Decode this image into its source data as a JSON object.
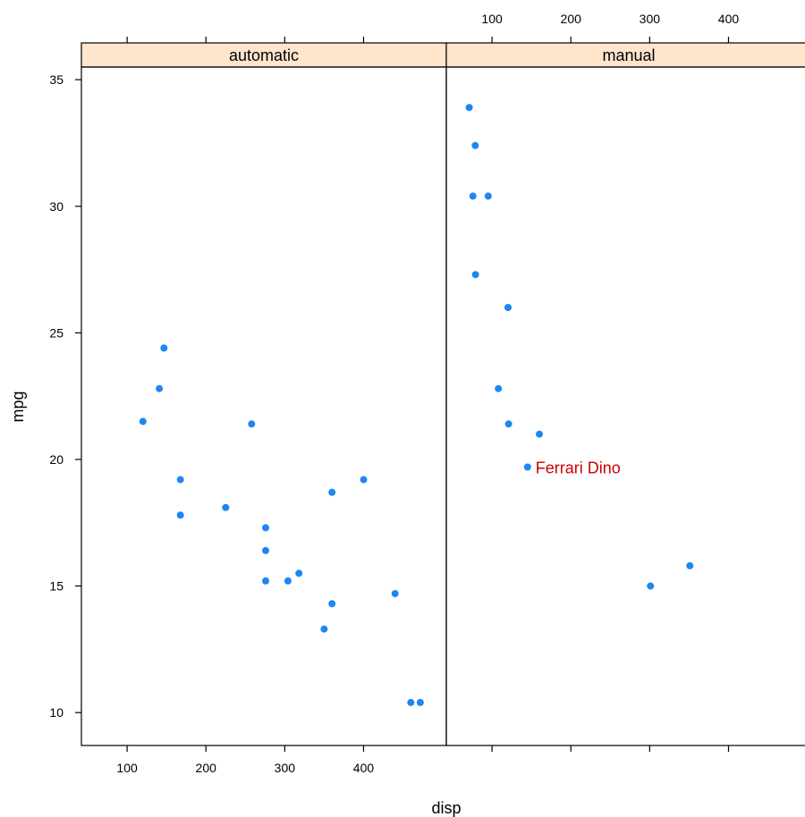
{
  "chart_data": {
    "type": "scatter",
    "xlabel": "disp",
    "ylabel": "mpg",
    "xlim": [
      42,
      505
    ],
    "ylim": [
      8.7,
      35.5
    ],
    "x_ticks": [
      100,
      200,
      300,
      400
    ],
    "y_ticks": [
      10,
      15,
      20,
      25,
      30,
      35
    ],
    "point_color": "#1f86f0",
    "strip_color": "#ffe5cc",
    "annotation_color": "#cc0000",
    "panels": [
      {
        "name": "automatic",
        "points": [
          {
            "x": 120.1,
            "y": 21.5
          },
          {
            "x": 146.7,
            "y": 24.4
          },
          {
            "x": 140.8,
            "y": 22.8
          },
          {
            "x": 167.6,
            "y": 19.2
          },
          {
            "x": 167.6,
            "y": 17.8
          },
          {
            "x": 225,
            "y": 18.1
          },
          {
            "x": 258,
            "y": 21.4
          },
          {
            "x": 275.8,
            "y": 17.3
          },
          {
            "x": 275.8,
            "y": 16.4
          },
          {
            "x": 275.8,
            "y": 15.2
          },
          {
            "x": 304,
            "y": 15.2
          },
          {
            "x": 318,
            "y": 15.5
          },
          {
            "x": 360,
            "y": 18.7
          },
          {
            "x": 360,
            "y": 14.3
          },
          {
            "x": 350,
            "y": 13.3
          },
          {
            "x": 400,
            "y": 19.2
          },
          {
            "x": 440,
            "y": 14.7
          },
          {
            "x": 460,
            "y": 10.4
          },
          {
            "x": 472,
            "y": 10.4
          }
        ]
      },
      {
        "name": "manual",
        "points": [
          {
            "x": 71.1,
            "y": 33.9
          },
          {
            "x": 78.7,
            "y": 32.4
          },
          {
            "x": 75.7,
            "y": 30.4
          },
          {
            "x": 95.1,
            "y": 30.4
          },
          {
            "x": 79,
            "y": 27.3
          },
          {
            "x": 120.3,
            "y": 26.0
          },
          {
            "x": 108,
            "y": 22.8
          },
          {
            "x": 121,
            "y": 21.4
          },
          {
            "x": 160,
            "y": 21.0
          },
          {
            "x": 145,
            "y": 19.7,
            "label": "Ferrari Dino"
          },
          {
            "x": 301,
            "y": 15.0
          },
          {
            "x": 351,
            "y": 15.8
          }
        ]
      }
    ]
  }
}
